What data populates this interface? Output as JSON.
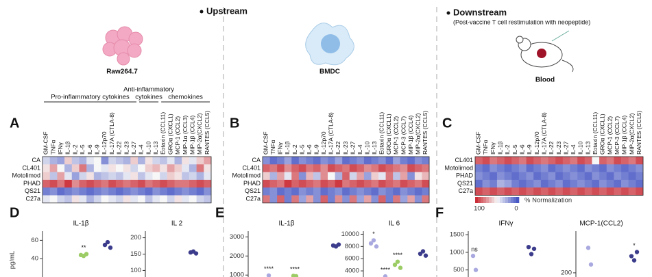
{
  "sections": [
    {
      "title": "Upstream"
    },
    {
      "title": "Downstream",
      "subtitle": "(Post-vaccine T cell restimulation with neopeptide)"
    }
  ],
  "cell_types": [
    "Raw264.7",
    "BMDC",
    "Blood"
  ],
  "groups": [
    {
      "lines": [
        "Pro-inflammatory cytokines"
      ]
    },
    {
      "lines": [
        "Anti-inflammatory",
        "cytokines"
      ]
    },
    {
      "lines": [
        "chemokines"
      ]
    }
  ],
  "heatmaps": [
    {
      "letter": "A",
      "columns": [
        "GM-CSF",
        "TNFα",
        "IFNγ",
        "IL-1β",
        "IL-2",
        "IL-5",
        "IL-6",
        "IL-9",
        "IL-12p70",
        "IL-17A (CTLA-8)",
        "IL-22",
        "IL-23",
        "IL-27",
        "IL-4",
        "IL-10",
        "IL-13",
        "Eotaxin (CCL11)",
        "GROα (CXCL1)",
        "MCP-1 (CCL2)",
        "MIP-1α (CCL3)",
        "MIP-1β (CCL4)",
        "MIP-2α(CXCL2)",
        "RANTES (CCL5)"
      ],
      "rows": [
        "CA",
        "CL401",
        "Motolimod",
        "PHAD",
        "QS21",
        "C27a"
      ],
      "values": [
        [
          40,
          30,
          25,
          60,
          35,
          30,
          45,
          50,
          20,
          40,
          35,
          30,
          60,
          30,
          55,
          40,
          35,
          45,
          30,
          55,
          45,
          60,
          70
        ],
        [
          55,
          70,
          50,
          30,
          60,
          80,
          30,
          50,
          45,
          55,
          50,
          55,
          40,
          50,
          60,
          65,
          55,
          70,
          60,
          45,
          30,
          80,
          55
        ],
        [
          60,
          35,
          70,
          45,
          25,
          40,
          55,
          30,
          35,
          40,
          35,
          45,
          55,
          35,
          45,
          50,
          40,
          60,
          55,
          35,
          40,
          30,
          45
        ],
        [
          85,
          90,
          80,
          95,
          75,
          85,
          90,
          85,
          80,
          90,
          85,
          80,
          85,
          90,
          80,
          85,
          90,
          85,
          80,
          80,
          85,
          90,
          85
        ],
        [
          15,
          20,
          10,
          15,
          20,
          15,
          10,
          15,
          20,
          15,
          10,
          15,
          20,
          15,
          10,
          20,
          15,
          10,
          15,
          20,
          15,
          10,
          20
        ],
        [
          45,
          50,
          40,
          35,
          55,
          45,
          30,
          40,
          50,
          45,
          40,
          55,
          45,
          50,
          35,
          45,
          50,
          40,
          55,
          45,
          50,
          40,
          35
        ]
      ]
    },
    {
      "letter": "B",
      "columns": [
        "GM-CSF",
        "TNFα",
        "IFNγ",
        "IL-1β",
        "IL-2",
        "IL-5",
        "IL-6",
        "IL-9",
        "IL-12p70",
        "IL-17A (CTLA-8)",
        "IL-22",
        "IL-23",
        "IL-27",
        "IL-4",
        "IL-10",
        "IL-13",
        "Eotaxin (CCL11)",
        "GROα (CXCL1)",
        "MCP-1 (CCL2)",
        "MCP-3 (CCL7)",
        "MIP-1β (CCL4)",
        "MIP-2α(CXCL2)",
        "RANTES (CCL5)"
      ],
      "rows": [
        "CA",
        "CL401",
        "Motolimod",
        "PHAD",
        "QS21",
        "C27a"
      ],
      "values": [
        [
          20,
          10,
          15,
          25,
          10,
          20,
          15,
          10,
          20,
          15,
          25,
          10,
          15,
          20,
          10,
          15,
          20,
          10,
          25,
          15,
          10,
          20,
          15
        ],
        [
          85,
          80,
          90,
          75,
          85,
          90,
          80,
          85,
          75,
          90,
          85,
          80,
          90,
          85,
          75,
          80,
          90,
          85,
          80,
          75,
          90,
          85,
          80
        ],
        [
          60,
          30,
          70,
          45,
          80,
          20,
          65,
          35,
          75,
          50,
          30,
          85,
          40,
          70,
          25,
          60,
          45,
          80,
          35,
          70,
          20,
          55,
          65
        ],
        [
          90,
          85,
          80,
          95,
          85,
          90,
          85,
          80,
          90,
          85,
          95,
          80,
          85,
          90,
          85,
          80,
          90,
          85,
          80,
          90,
          85,
          80,
          90
        ],
        [
          15,
          20,
          10,
          15,
          10,
          20,
          15,
          20,
          10,
          15,
          20,
          10,
          15,
          20,
          15,
          10,
          20,
          15,
          10,
          20,
          15,
          10,
          15
        ],
        [
          80,
          20,
          85,
          15,
          80,
          25,
          70,
          20,
          85,
          15,
          75,
          20,
          80,
          25,
          70,
          20,
          85,
          15,
          80,
          25,
          70,
          20,
          80
        ]
      ]
    },
    {
      "letter": "C",
      "columns": [
        "GM-CSF",
        "TNFα",
        "IFNγ",
        "IL-1β",
        "IL-2",
        "IL-5",
        "IL-6",
        "IL-9",
        "IL-12p70",
        "IL-17A (CTLA-8)",
        "IL-22",
        "IL-23",
        "IL-27",
        "IL-4",
        "IL-10",
        "IL-13",
        "Eotaxin (CCL11)",
        "GROα (CXCL1)",
        "MCP-1 (CCL2)",
        "MCP-3 (CCL7)",
        "MIP-1β (CCL4)",
        "MIP-2α(CXCL2)",
        "RANTES (CCL5)"
      ],
      "rows": [
        "CL401",
        "Motolimod",
        "PHAD",
        "QS21",
        "C27a"
      ],
      "values": [
        [
          85,
          90,
          80,
          85,
          90,
          85,
          80,
          90,
          85,
          80,
          85,
          90,
          85,
          80,
          90,
          85,
          50,
          85,
          80,
          90,
          85,
          80,
          90
        ],
        [
          15,
          10,
          20,
          15,
          10,
          15,
          20,
          10,
          15,
          20,
          10,
          15,
          20,
          15,
          10,
          20,
          15,
          10,
          20,
          15,
          10,
          15,
          20
        ],
        [
          20,
          15,
          10,
          20,
          15,
          10,
          15,
          20,
          10,
          15,
          20,
          10,
          15,
          20,
          15,
          10,
          20,
          15,
          10,
          20,
          15,
          10,
          15
        ],
        [
          10,
          20,
          15,
          30,
          25,
          15,
          10,
          15,
          20,
          10,
          15,
          20,
          10,
          15,
          20,
          15,
          10,
          20,
          15,
          10,
          20,
          15,
          10
        ],
        [
          90,
          85,
          90,
          85,
          90,
          85,
          90,
          85,
          90,
          85,
          90,
          85,
          90,
          85,
          90,
          85,
          90,
          85,
          90,
          85,
          90,
          85,
          90
        ]
      ],
      "legend": {
        "max": 100,
        "min": 0,
        "label": "% Normalization"
      }
    }
  ],
  "panels": [
    {
      "letter": "D",
      "ylabel": "pg/mL",
      "plots": [
        {
          "title": "IL-1β",
          "ylim": [
            20,
            70
          ],
          "yticks": [
            40,
            60
          ],
          "groups": [
            {
              "color": "#9ccc65",
              "values": [
                44,
                43,
                45
              ],
              "label": "**"
            },
            {
              "color": "#3c3c8c",
              "values": [
                55,
                58,
                52
              ]
            }
          ]
        },
        {
          "title": "IL 2",
          "ylim": [
            80,
            220
          ],
          "yticks": [
            100,
            150,
            200
          ],
          "groups": [
            {
              "color": "#3c3c8c",
              "values": [
                155,
                158,
                152
              ]
            }
          ]
        }
      ]
    },
    {
      "letter": "E",
      "plots": [
        {
          "title": "IL-1β",
          "ylim": [
            900,
            3300
          ],
          "yticks": [
            1000,
            2000,
            3000
          ],
          "groups": [
            {
              "color": "#a9a9e0",
              "values": [
                980
              ],
              "label": "****"
            },
            {
              "color": "#9ccc65",
              "values": [
                960,
                940
              ],
              "label": "****"
            },
            {
              "color": "#3c3c8c",
              "values": [
                2550,
                2500,
                2600
              ]
            }
          ]
        },
        {
          "title": "IL 6",
          "ylim": [
            3000,
            10500
          ],
          "yticks": [
            4000,
            6000,
            8000,
            10000
          ],
          "groups": [
            {
              "color": "#a9a9e0",
              "values": [
                8500,
                9000,
                8000
              ],
              "label": "*"
            },
            {
              "color": "#a9a9e0",
              "values": [
                3100
              ],
              "label": "****"
            },
            {
              "color": "#9ccc65",
              "values": [
                5000,
                5500,
                4500
              ],
              "label": "****"
            },
            {
              "color": "#3c3c8c",
              "values": [
                6800,
                7200,
                6500
              ]
            }
          ]
        }
      ]
    },
    {
      "letter": "F",
      "plots": [
        {
          "title": "IFNγ",
          "ylim": [
            300,
            1600
          ],
          "yticks": [
            500,
            1000,
            1500
          ],
          "groups": [
            {
              "color": "#a9a9e0",
              "values": [
                900,
                500
              ],
              "label": "ns"
            },
            {
              "color": "#3c3c8c",
              "values": [
                1150,
                950,
                1100
              ]
            }
          ]
        },
        {
          "title": "MCP-1(CCL2)",
          "ylim": [
            150,
            700
          ],
          "yticks": [
            200
          ],
          "groups": [
            {
              "color": "#a9a9e0",
              "values": [
                500,
                300
              ]
            },
            {
              "color": "#3c3c8c",
              "values": [
                400,
                350,
                450
              ],
              "label": "*"
            }
          ]
        }
      ]
    }
  ]
}
